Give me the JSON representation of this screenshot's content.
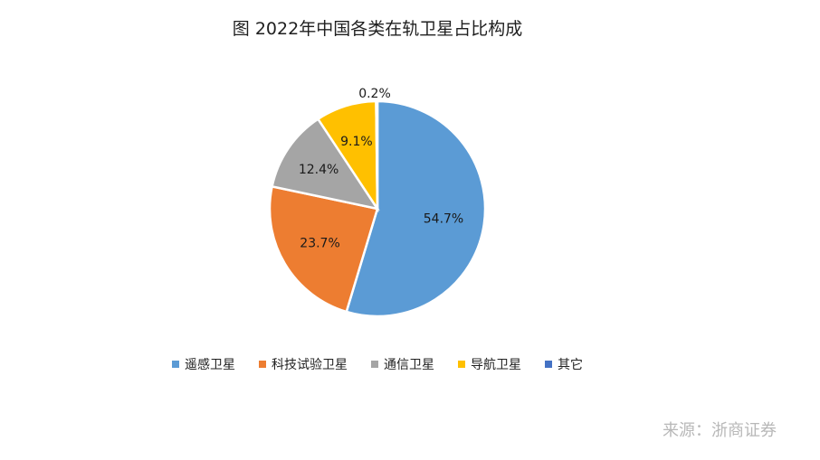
{
  "chart_data": {
    "type": "pie",
    "title": "图 2022年中国各类在轨卫星占比构成",
    "slices": [
      {
        "label": "遥感卫星",
        "value": 54.7,
        "value_label": "54.7%",
        "color": "#5B9BD5"
      },
      {
        "label": "科技试验卫星",
        "value": 23.7,
        "value_label": "23.7%",
        "color": "#ED7D31"
      },
      {
        "label": "通信卫星",
        "value": 12.4,
        "value_label": "12.4%",
        "color": "#A5A5A5"
      },
      {
        "label": "导航卫星",
        "value": 9.1,
        "value_label": "9.1%",
        "color": "#FFC000"
      },
      {
        "label": "其它",
        "value": 0.2,
        "value_label": "0.2%",
        "color": "#4472C4"
      }
    ],
    "legend_position": "bottom"
  },
  "source": "来源：浙商证券"
}
